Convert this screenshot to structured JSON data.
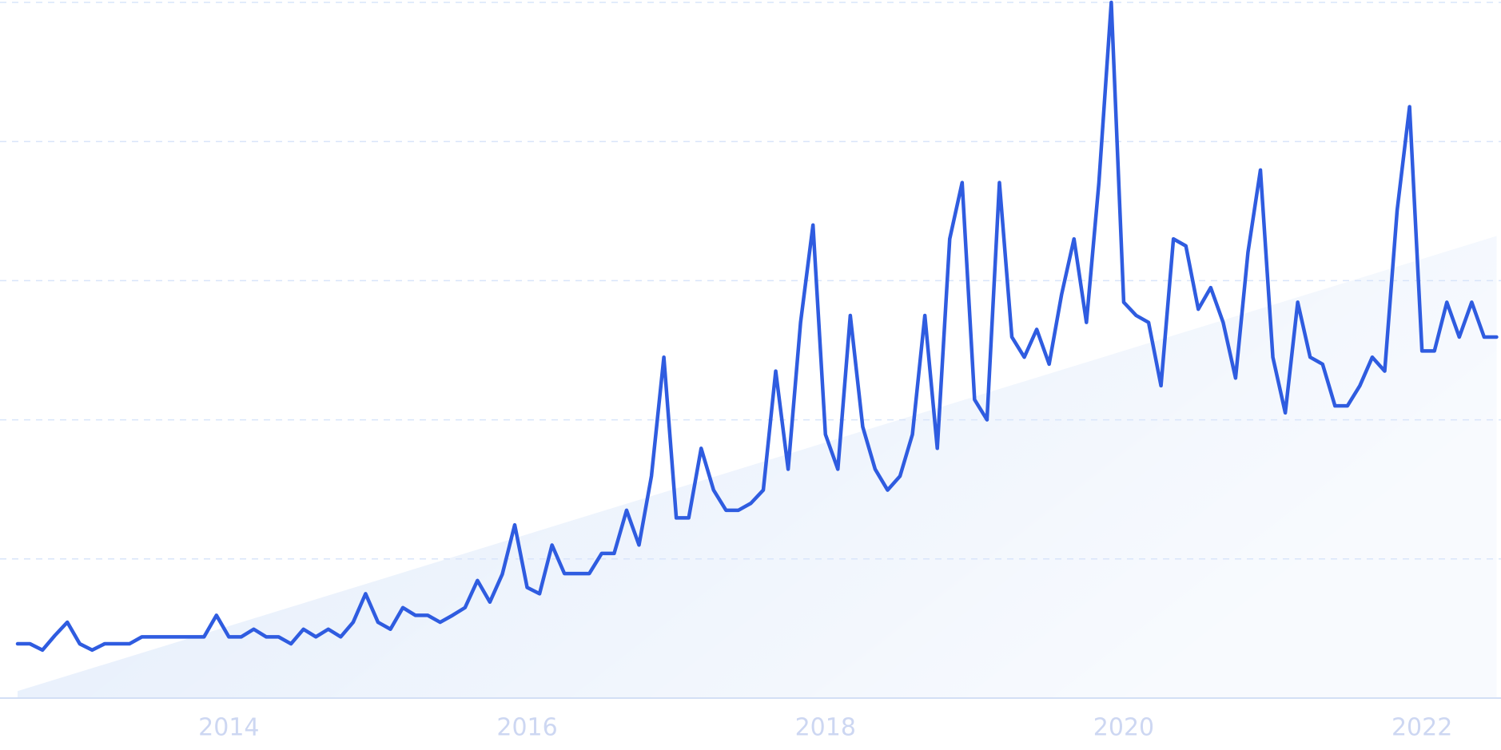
{
  "chart_data": {
    "type": "line",
    "categories": [
      null,
      null,
      null,
      null,
      null,
      null,
      null,
      null,
      null,
      null,
      null,
      null,
      null,
      null,
      null,
      null,
      null,
      "2014",
      null,
      null,
      null,
      null,
      null,
      null,
      null,
      null,
      null,
      null,
      null,
      null,
      null,
      null,
      null,
      null,
      null,
      null,
      null,
      null,
      null,
      null,
      null,
      "2016",
      null,
      null,
      null,
      null,
      null,
      null,
      null,
      null,
      null,
      null,
      null,
      null,
      null,
      null,
      null,
      null,
      null,
      null,
      null,
      null,
      null,
      null,
      null,
      "2018",
      null,
      null,
      null,
      null,
      null,
      null,
      null,
      null,
      null,
      null,
      null,
      null,
      null,
      null,
      null,
      null,
      null,
      null,
      null,
      null,
      null,
      null,
      null,
      "2020",
      null,
      null,
      null,
      null,
      null,
      null,
      null,
      null,
      null,
      null,
      null,
      null,
      null,
      null,
      null,
      null,
      null,
      null,
      null,
      null,
      null,
      null,
      null,
      "2022",
      null,
      null,
      null,
      null,
      null,
      null
    ],
    "values": [
      7.8,
      7.8,
      6.9,
      9.0,
      10.9,
      7.8,
      6.9,
      7.8,
      7.8,
      7.8,
      8.8,
      8.8,
      8.8,
      8.8,
      8.8,
      8.8,
      11.9,
      8.8,
      8.8,
      9.9,
      8.8,
      8.8,
      7.8,
      9.9,
      8.8,
      9.9,
      8.8,
      10.9,
      15.0,
      10.9,
      9.9,
      13.0,
      11.9,
      11.9,
      10.9,
      11.9,
      13.0,
      16.9,
      13.8,
      17.8,
      24.9,
      15.9,
      15.0,
      22.0,
      17.9,
      17.9,
      17.9,
      20.8,
      20.8,
      27.0,
      22.0,
      31.9,
      49.0,
      25.9,
      25.9,
      35.9,
      29.9,
      27.0,
      27.0,
      28.0,
      29.9,
      47.0,
      32.9,
      54.0,
      68.0,
      37.9,
      32.9,
      55.0,
      39.0,
      32.9,
      29.9,
      31.9,
      37.9,
      55.0,
      35.9,
      66.0,
      74.1,
      42.9,
      40.0,
      74.1,
      51.9,
      49.0,
      53.0,
      48.0,
      58.0,
      66.0,
      54.0,
      74.0,
      100,
      56.9,
      55.0,
      54.0,
      44.9,
      66.0,
      65.0,
      55.9,
      59.0,
      54.0,
      46.0,
      64.1,
      75.9,
      49.0,
      41.0,
      56.9,
      49.0,
      48.0,
      42.0,
      42.0,
      44.9,
      49.0,
      47.0,
      70.1,
      85.0,
      49.9,
      49.9,
      56.9,
      51.9,
      56.9,
      51.9,
      51.9
    ],
    "color": "#2f5ce0",
    "trend": [
      1.0,
      66.4
    ],
    "trend_color": "#e2ecfb",
    "ylim": [
      0,
      100
    ],
    "yticks": [
      0,
      20,
      40,
      60,
      80,
      100
    ],
    "grid": true
  }
}
